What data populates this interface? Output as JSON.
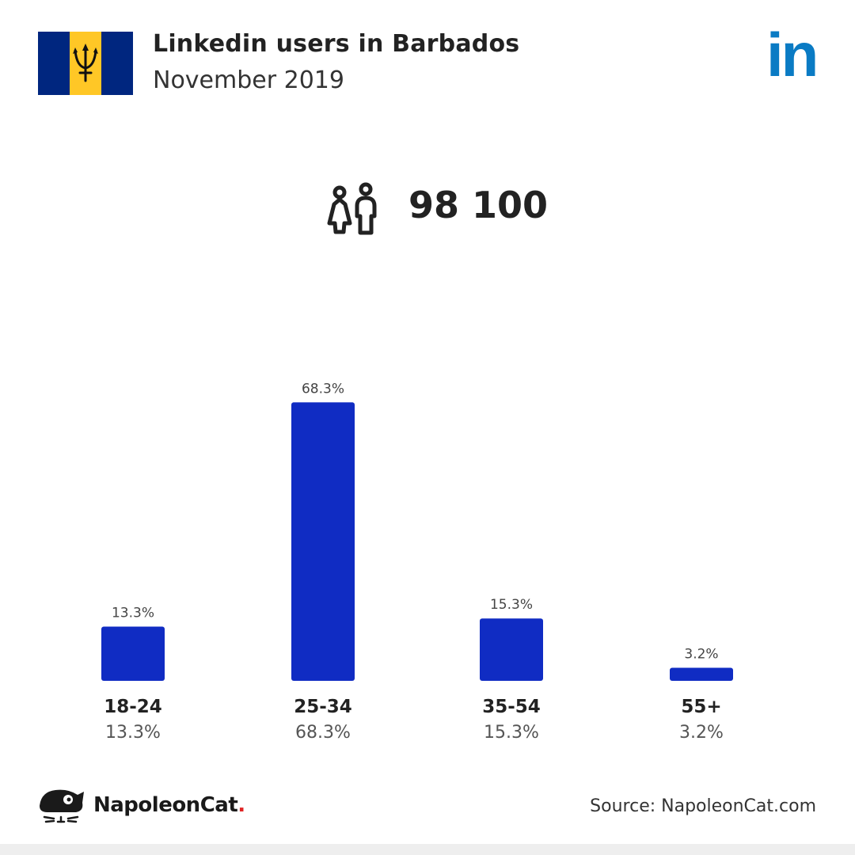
{
  "header": {
    "title": "Linkedin users in Barbados",
    "subtitle": "November 2019",
    "logo_text": "in",
    "logo_icon": "linkedin-icon",
    "flag_icon": "barbados-flag-icon"
  },
  "total": {
    "icon": "people-icon",
    "value": "98 100"
  },
  "chart_data": {
    "type": "bar",
    "title": "",
    "xlabel": "",
    "ylabel": "",
    "categories": [
      "18-24",
      "25-34",
      "35-54",
      "55+"
    ],
    "values": [
      13.3,
      68.3,
      15.3,
      3.2
    ],
    "value_labels": [
      "13.3%",
      "68.3%",
      "15.3%",
      "3.2%"
    ],
    "ylim": [
      0,
      70
    ],
    "grid": false,
    "bar_color": "#102cc3"
  },
  "footer": {
    "brand_name": "NapoleonCat",
    "brand_dot": ".",
    "source": "Source: NapoleonCat.com",
    "logo_icon": "napoleoncat-logo-icon"
  },
  "colors": {
    "flag_blue": "#00267f",
    "flag_gold": "#ffc726",
    "linkedin_blue": "#0a7bc4",
    "brand_dot": "#e02424"
  }
}
